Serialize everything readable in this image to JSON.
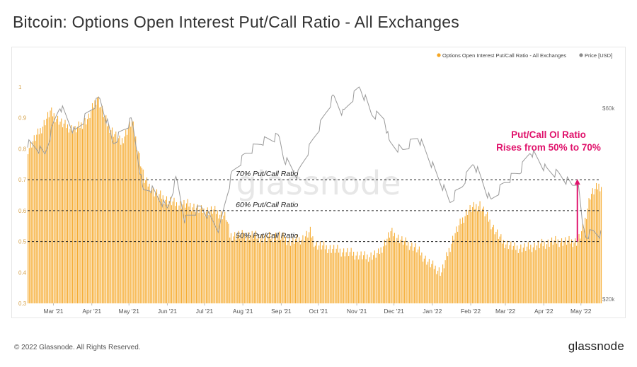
{
  "title": "Bitcoin: Options Open Interest Put/Call Ratio - All Exchanges",
  "footer": {
    "copyright": "© 2022 Glassnode. All Rights Reserved.",
    "logo": "glassnode"
  },
  "watermark": "glassnode",
  "colors": {
    "bars": "#f5a623",
    "price": "#8a8a8a",
    "annotation": "#e0136c",
    "reference": "#222222"
  },
  "chart_data": {
    "type": "bar",
    "title": "Bitcoin: Options Open Interest Put/Call Ratio - All Exchanges",
    "legend_position": "top-right",
    "legend": [
      {
        "label": "Options Open Interest Put/Call Ratio - All Exchanges",
        "color": "#f5a623"
      },
      {
        "label": "Price [USD]",
        "color": "#8a8a8a"
      }
    ],
    "x_ticks": [
      "Mar '21",
      "Apr '21",
      "May '21",
      "Jun '21",
      "Jul '21",
      "Aug '21",
      "Sep '21",
      "Oct '21",
      "Nov '21",
      "Dec '21",
      "Jan '22",
      "Feb '22",
      "Mar '22",
      "Apr '22",
      "May '22"
    ],
    "y_left": {
      "ticks": [
        "1",
        "0.9",
        "0.8",
        "0.7",
        "0.6",
        "0.5",
        "0.4",
        "0.3"
      ],
      "range": [
        0.3,
        1.0
      ]
    },
    "y_right": {
      "ticks": [
        "$60k",
        "$20k"
      ],
      "range": [
        20000,
        60000
      ],
      "scale": "log"
    },
    "grid": false,
    "reference_lines": [
      {
        "value": 0.7,
        "label": "70% Put/Call Ratio"
      },
      {
        "value": 0.6,
        "label": "60% Put/Call Ratio"
      },
      {
        "value": 0.5,
        "label": "50% Put/Call Ratio"
      }
    ],
    "annotation": {
      "text_line1": "Put/Call OI Ratio",
      "text_line2": "Rises from 50% to 70%",
      "from": 0.5,
      "to": 0.7,
      "date": "2022-05-05"
    },
    "ratio_series": {
      "name": "Options Open Interest Put/Call Ratio - All Exchanges",
      "dates": [
        "2021-02-15",
        "2021-02-25",
        "2021-03-05",
        "2021-03-15",
        "2021-03-25",
        "2021-04-05",
        "2021-04-12",
        "2021-04-20",
        "2021-05-01",
        "2021-05-10",
        "2021-05-20",
        "2021-05-28",
        "2021-06-05",
        "2021-06-15",
        "2021-06-25",
        "2021-07-05",
        "2021-07-15",
        "2021-07-25",
        "2021-07-28",
        "2021-08-05",
        "2021-08-15",
        "2021-08-25",
        "2021-09-05",
        "2021-09-15",
        "2021-09-25",
        "2021-10-01",
        "2021-10-05",
        "2021-10-15",
        "2021-10-25",
        "2021-11-05",
        "2021-11-15",
        "2021-11-25",
        "2021-12-05",
        "2021-12-15",
        "2021-12-25",
        "2022-01-05",
        "2022-01-15",
        "2022-01-25",
        "2022-02-05",
        "2022-02-15",
        "2022-02-25",
        "2022-03-05",
        "2022-03-15",
        "2022-03-25",
        "2022-04-05",
        "2022-04-15",
        "2022-04-25",
        "2022-05-05",
        "2022-05-10",
        "2022-05-15",
        "2022-05-22"
      ],
      "values": [
        0.8,
        0.86,
        0.92,
        0.88,
        0.86,
        0.9,
        0.97,
        0.88,
        0.82,
        0.89,
        0.7,
        0.66,
        0.64,
        0.62,
        0.62,
        0.6,
        0.6,
        0.58,
        0.52,
        0.52,
        0.52,
        0.51,
        0.52,
        0.5,
        0.51,
        0.53,
        0.49,
        0.48,
        0.47,
        0.46,
        0.45,
        0.46,
        0.53,
        0.5,
        0.48,
        0.43,
        0.4,
        0.52,
        0.6,
        0.62,
        0.55,
        0.5,
        0.48,
        0.48,
        0.49,
        0.5,
        0.5,
        0.5,
        0.55,
        0.65,
        0.68
      ]
    },
    "price_series": {
      "name": "Price [USD]",
      "dates": [
        "2021-02-15",
        "2021-02-22",
        "2021-03-01",
        "2021-03-13",
        "2021-03-25",
        "2021-04-14",
        "2021-04-25",
        "2021-05-10",
        "2021-05-19",
        "2021-05-25",
        "2021-06-08",
        "2021-06-15",
        "2021-06-22",
        "2021-07-05",
        "2021-07-20",
        "2021-07-30",
        "2021-08-10",
        "2021-08-23",
        "2021-09-06",
        "2021-09-10",
        "2021-09-21",
        "2021-10-01",
        "2021-10-10",
        "2021-10-20",
        "2021-10-28",
        "2021-11-10",
        "2021-11-20",
        "2021-11-30",
        "2021-12-04",
        "2021-12-15",
        "2021-12-27",
        "2022-01-10",
        "2022-01-22",
        "2022-02-01",
        "2022-02-10",
        "2022-02-24",
        "2022-03-07",
        "2022-03-20",
        "2022-03-28",
        "2022-04-10",
        "2022-04-20",
        "2022-05-01",
        "2022-05-05",
        "2022-05-09",
        "2022-05-12",
        "2022-05-18",
        "2022-05-24"
      ],
      "values": [
        49000,
        48000,
        46000,
        61000,
        52000,
        63500,
        49000,
        56000,
        37000,
        38000,
        33500,
        40000,
        31500,
        34000,
        29800,
        41000,
        46000,
        49500,
        51000,
        45000,
        40700,
        48000,
        55000,
        64000,
        58000,
        68000,
        58000,
        57000,
        49000,
        47000,
        51000,
        41800,
        35000,
        38500,
        44000,
        35000,
        39000,
        42000,
        47000,
        42000,
        41000,
        38500,
        39500,
        31000,
        28800,
        29500,
        29000
      ]
    }
  }
}
